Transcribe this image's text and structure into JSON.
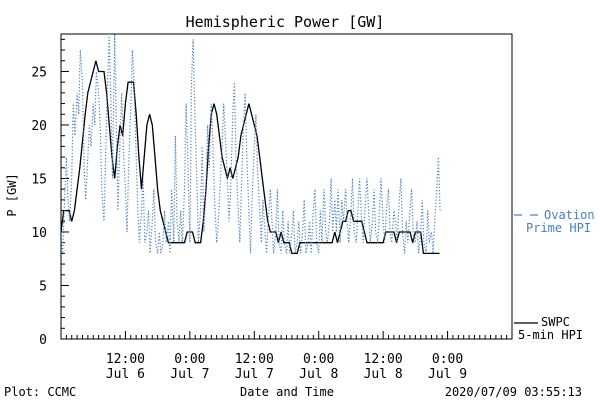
{
  "chart_data": {
    "type": "line",
    "title": "Hemispheric Power [GW]",
    "ylabel": "P [GW]",
    "xlabel": "Date and Time",
    "ylim": [
      0,
      28.5
    ],
    "xlim_hours": [
      0,
      84
    ],
    "yticks": [
      0,
      5,
      10,
      15,
      20,
      25
    ],
    "xticks": [
      {
        "t": 12,
        "time": "12:00",
        "date": "Jul 6"
      },
      {
        "t": 24,
        "time": "0:00",
        "date": "Jul 7"
      },
      {
        "t": 36,
        "time": "12:00",
        "date": "Jul 7"
      },
      {
        "t": 48,
        "time": "0:00",
        "date": "Jul 8"
      },
      {
        "t": 60,
        "time": "12:00",
        "date": "Jul 8"
      },
      {
        "t": 72,
        "time": "0:00",
        "date": "Jul 9"
      }
    ],
    "series": [
      {
        "name": "SWPC 5-min HPI",
        "color": "#000000",
        "style": "solid",
        "points": [
          [
            0,
            10
          ],
          [
            0.5,
            12
          ],
          [
            1.5,
            12
          ],
          [
            2,
            11
          ],
          [
            2.5,
            12
          ],
          [
            3.5,
            16
          ],
          [
            4.5,
            21
          ],
          [
            5,
            23
          ],
          [
            5.5,
            24
          ],
          [
            6,
            25
          ],
          [
            6.5,
            26
          ],
          [
            7,
            25
          ],
          [
            8,
            25
          ],
          [
            8.5,
            23
          ],
          [
            9,
            20
          ],
          [
            9.5,
            17
          ],
          [
            10,
            15
          ],
          [
            10.5,
            18
          ],
          [
            11,
            20
          ],
          [
            11.5,
            19
          ],
          [
            12,
            22
          ],
          [
            12.5,
            24
          ],
          [
            13.5,
            24
          ],
          [
            14,
            21
          ],
          [
            14.5,
            17
          ],
          [
            15,
            14
          ],
          [
            15.5,
            17
          ],
          [
            16,
            20
          ],
          [
            16.5,
            21
          ],
          [
            17,
            20
          ],
          [
            17.5,
            17
          ],
          [
            18,
            14
          ],
          [
            18.5,
            12
          ],
          [
            19,
            11
          ],
          [
            19.5,
            10
          ],
          [
            20,
            9
          ],
          [
            22,
            9
          ],
          [
            23,
            9
          ],
          [
            23.5,
            10
          ],
          [
            24.5,
            10
          ],
          [
            25,
            9
          ],
          [
            26,
            9
          ],
          [
            26.5,
            11
          ],
          [
            27,
            14
          ],
          [
            27.5,
            18
          ],
          [
            28,
            21
          ],
          [
            28.5,
            22
          ],
          [
            29,
            21
          ],
          [
            29.5,
            19
          ],
          [
            30,
            17
          ],
          [
            30.5,
            16
          ],
          [
            31,
            15
          ],
          [
            31.5,
            16
          ],
          [
            32,
            15
          ],
          [
            33,
            17
          ],
          [
            33.5,
            19
          ],
          [
            34,
            20
          ],
          [
            34.5,
            21
          ],
          [
            35,
            22
          ],
          [
            35.5,
            21
          ],
          [
            36,
            20
          ],
          [
            36.5,
            19
          ],
          [
            37,
            17
          ],
          [
            37.5,
            15
          ],
          [
            38,
            13
          ],
          [
            38.5,
            11
          ],
          [
            39,
            10
          ],
          [
            40,
            10
          ],
          [
            40.5,
            9
          ],
          [
            41,
            10
          ],
          [
            41.5,
            9
          ],
          [
            42,
            9
          ],
          [
            42.5,
            9
          ],
          [
            43,
            8
          ],
          [
            44,
            8
          ],
          [
            44.5,
            9
          ],
          [
            46,
            9
          ],
          [
            48,
            9
          ],
          [
            50,
            9
          ],
          [
            50.5,
            9
          ],
          [
            51,
            10
          ],
          [
            51.5,
            9
          ],
          [
            52,
            10
          ],
          [
            52.5,
            11
          ],
          [
            53,
            11
          ],
          [
            53.5,
            12
          ],
          [
            54,
            12
          ],
          [
            54.5,
            11
          ],
          [
            56,
            11
          ],
          [
            56.5,
            10
          ],
          [
            57,
            9
          ],
          [
            58,
            9
          ],
          [
            59,
            9
          ],
          [
            60,
            9
          ],
          [
            60.5,
            10
          ],
          [
            61,
            10
          ],
          [
            62,
            10
          ],
          [
            62.5,
            9
          ],
          [
            63,
            10
          ],
          [
            64,
            10
          ],
          [
            65,
            10
          ],
          [
            65.5,
            9
          ],
          [
            66,
            10
          ],
          [
            67,
            10
          ],
          [
            67.5,
            8
          ],
          [
            68,
            8
          ],
          [
            69,
            8
          ],
          [
            69.5,
            8
          ],
          [
            70,
            8
          ],
          [
            70.5,
            8
          ]
        ]
      },
      {
        "name": "Ovation Prime HPI",
        "color": "#4a7fc1",
        "style": "dotted",
        "points": [
          [
            0,
            10
          ],
          [
            0.3,
            8
          ],
          [
            0.6,
            12
          ],
          [
            1,
            17
          ],
          [
            1.3,
            13
          ],
          [
            1.6,
            11
          ],
          [
            2,
            15
          ],
          [
            2.3,
            22
          ],
          [
            2.6,
            19
          ],
          [
            3,
            23
          ],
          [
            3.3,
            21
          ],
          [
            3.6,
            27
          ],
          [
            4,
            24
          ],
          [
            4.3,
            16
          ],
          [
            4.6,
            13
          ],
          [
            5,
            17
          ],
          [
            5.3,
            20
          ],
          [
            5.6,
            18
          ],
          [
            6,
            22
          ],
          [
            6.3,
            20
          ],
          [
            6.6,
            25
          ],
          [
            7,
            23
          ],
          [
            7.3,
            20
          ],
          [
            7.6,
            14
          ],
          [
            8,
            11
          ],
          [
            8.3,
            17
          ],
          [
            8.6,
            23
          ],
          [
            9,
            28.5
          ],
          [
            9.3,
            22
          ],
          [
            9.6,
            15
          ],
          [
            10,
            28.5
          ],
          [
            10.3,
            20
          ],
          [
            10.6,
            12
          ],
          [
            11,
            19
          ],
          [
            11.3,
            23
          ],
          [
            11.6,
            18
          ],
          [
            12,
            14
          ],
          [
            12.3,
            10
          ],
          [
            12.6,
            16
          ],
          [
            13,
            22
          ],
          [
            13.3,
            27
          ],
          [
            13.6,
            24
          ],
          [
            14,
            17
          ],
          [
            14.3,
            12
          ],
          [
            14.6,
            9
          ],
          [
            15,
            12
          ],
          [
            15.3,
            15
          ],
          [
            15.6,
            9
          ],
          [
            16,
            10
          ],
          [
            16.3,
            12
          ],
          [
            16.6,
            8
          ],
          [
            17,
            11
          ],
          [
            17.3,
            14
          ],
          [
            17.6,
            9
          ],
          [
            18,
            8
          ],
          [
            18.3,
            10
          ],
          [
            18.6,
            8
          ],
          [
            19,
            9
          ],
          [
            19.3,
            12
          ],
          [
            19.6,
            9
          ],
          [
            20,
            11
          ],
          [
            20.3,
            8
          ],
          [
            20.6,
            14
          ],
          [
            21,
            9
          ],
          [
            21.3,
            19
          ],
          [
            21.6,
            11
          ],
          [
            22,
            9
          ],
          [
            22.3,
            12
          ],
          [
            22.6,
            9
          ],
          [
            23,
            14
          ],
          [
            23.3,
            22
          ],
          [
            23.6,
            17
          ],
          [
            24,
            9
          ],
          [
            24.3,
            24
          ],
          [
            24.6,
            28
          ],
          [
            25,
            20
          ],
          [
            25.3,
            15
          ],
          [
            25.6,
            9
          ],
          [
            26,
            12
          ],
          [
            26.3,
            18
          ],
          [
            26.6,
            10
          ],
          [
            27,
            14
          ],
          [
            27.3,
            20
          ],
          [
            27.6,
            16
          ],
          [
            28,
            22
          ],
          [
            28.3,
            18
          ],
          [
            28.6,
            13
          ],
          [
            29,
            9
          ],
          [
            29.3,
            11
          ],
          [
            29.6,
            14
          ],
          [
            30,
            18
          ],
          [
            30.3,
            22
          ],
          [
            30.6,
            19
          ],
          [
            31,
            15
          ],
          [
            31.3,
            11
          ],
          [
            31.6,
            14
          ],
          [
            32,
            21
          ],
          [
            32.3,
            24
          ],
          [
            32.6,
            17
          ],
          [
            33,
            12
          ],
          [
            33.3,
            9
          ],
          [
            33.6,
            14
          ],
          [
            34,
            20
          ],
          [
            34.3,
            23
          ],
          [
            34.6,
            17
          ],
          [
            35,
            12
          ],
          [
            35.3,
            8
          ],
          [
            35.6,
            13
          ],
          [
            36,
            18
          ],
          [
            36.3,
            21
          ],
          [
            36.6,
            16
          ],
          [
            37,
            12
          ],
          [
            37.3,
            9
          ],
          [
            37.6,
            13
          ],
          [
            38,
            10
          ],
          [
            38.3,
            8
          ],
          [
            38.6,
            11
          ],
          [
            39,
            14
          ],
          [
            39.3,
            11
          ],
          [
            39.6,
            8
          ],
          [
            40,
            10
          ],
          [
            40.3,
            14
          ],
          [
            40.6,
            9
          ],
          [
            41,
            8
          ],
          [
            41.3,
            12
          ],
          [
            41.6,
            9
          ],
          [
            42,
            8
          ],
          [
            42.3,
            11
          ],
          [
            42.6,
            8
          ],
          [
            43,
            10
          ],
          [
            43.3,
            12
          ],
          [
            43.6,
            8
          ],
          [
            44,
            9
          ],
          [
            44.3,
            11
          ],
          [
            44.6,
            8
          ],
          [
            45,
            10
          ],
          [
            45.3,
            13
          ],
          [
            45.6,
            8
          ],
          [
            46,
            9
          ],
          [
            46.3,
            11
          ],
          [
            46.6,
            8
          ],
          [
            47,
            12
          ],
          [
            47.3,
            14
          ],
          [
            47.6,
            9
          ],
          [
            48,
            8
          ],
          [
            48.3,
            12
          ],
          [
            48.6,
            9
          ],
          [
            49,
            14
          ],
          [
            49.3,
            10
          ],
          [
            49.6,
            9
          ],
          [
            50,
            11
          ],
          [
            50.3,
            15
          ],
          [
            50.6,
            10
          ],
          [
            51,
            13
          ],
          [
            51.3,
            10
          ],
          [
            51.6,
            14
          ],
          [
            52,
            9
          ],
          [
            52.3,
            13
          ],
          [
            52.6,
            11
          ],
          [
            53,
            14
          ],
          [
            53.3,
            11
          ],
          [
            53.6,
            9
          ],
          [
            54,
            12
          ],
          [
            54.3,
            15
          ],
          [
            54.6,
            10
          ],
          [
            55,
            9
          ],
          [
            55.3,
            12
          ],
          [
            55.6,
            15
          ],
          [
            56,
            11
          ],
          [
            56.3,
            9
          ],
          [
            56.6,
            12
          ],
          [
            57,
            15
          ],
          [
            57.3,
            12
          ],
          [
            57.6,
            9
          ],
          [
            58,
            11
          ],
          [
            58.3,
            14
          ],
          [
            58.6,
            10
          ],
          [
            59,
            9
          ],
          [
            59.3,
            12
          ],
          [
            59.6,
            15
          ],
          [
            60,
            11
          ],
          [
            60.3,
            9
          ],
          [
            60.6,
            12
          ],
          [
            61,
            14
          ],
          [
            61.3,
            10
          ],
          [
            61.6,
            9
          ],
          [
            62,
            12
          ],
          [
            62.3,
            11
          ],
          [
            62.6,
            9
          ],
          [
            63,
            13
          ],
          [
            63.3,
            15
          ],
          [
            63.6,
            10
          ],
          [
            64,
            8
          ],
          [
            64.3,
            11
          ],
          [
            64.6,
            9
          ],
          [
            65,
            12
          ],
          [
            65.3,
            14
          ],
          [
            65.6,
            10
          ],
          [
            66,
            9
          ],
          [
            66.3,
            11
          ],
          [
            66.6,
            8
          ],
          [
            67,
            10
          ],
          [
            67.3,
            13
          ],
          [
            67.6,
            9
          ],
          [
            68,
            8
          ],
          [
            68.3,
            12
          ],
          [
            68.6,
            9
          ],
          [
            69,
            10
          ],
          [
            69.3,
            8
          ],
          [
            69.6,
            11
          ],
          [
            70,
            14
          ],
          [
            70.3,
            17
          ],
          [
            70.6,
            12
          ]
        ]
      }
    ],
    "legend": [
      {
        "series": "SWPC 5-min HPI",
        "line1": "SWPC",
        "line2": "5-min HPI",
        "color": "#000000"
      },
      {
        "series": "Ovation Prime HPI",
        "line1": "Ovation",
        "line2": "Prime HPI",
        "color": "#4a7fc1"
      }
    ],
    "footer": {
      "left": "Plot: CCMC",
      "center": "Date and Time",
      "right": "2020/07/09 03:55:13"
    }
  }
}
